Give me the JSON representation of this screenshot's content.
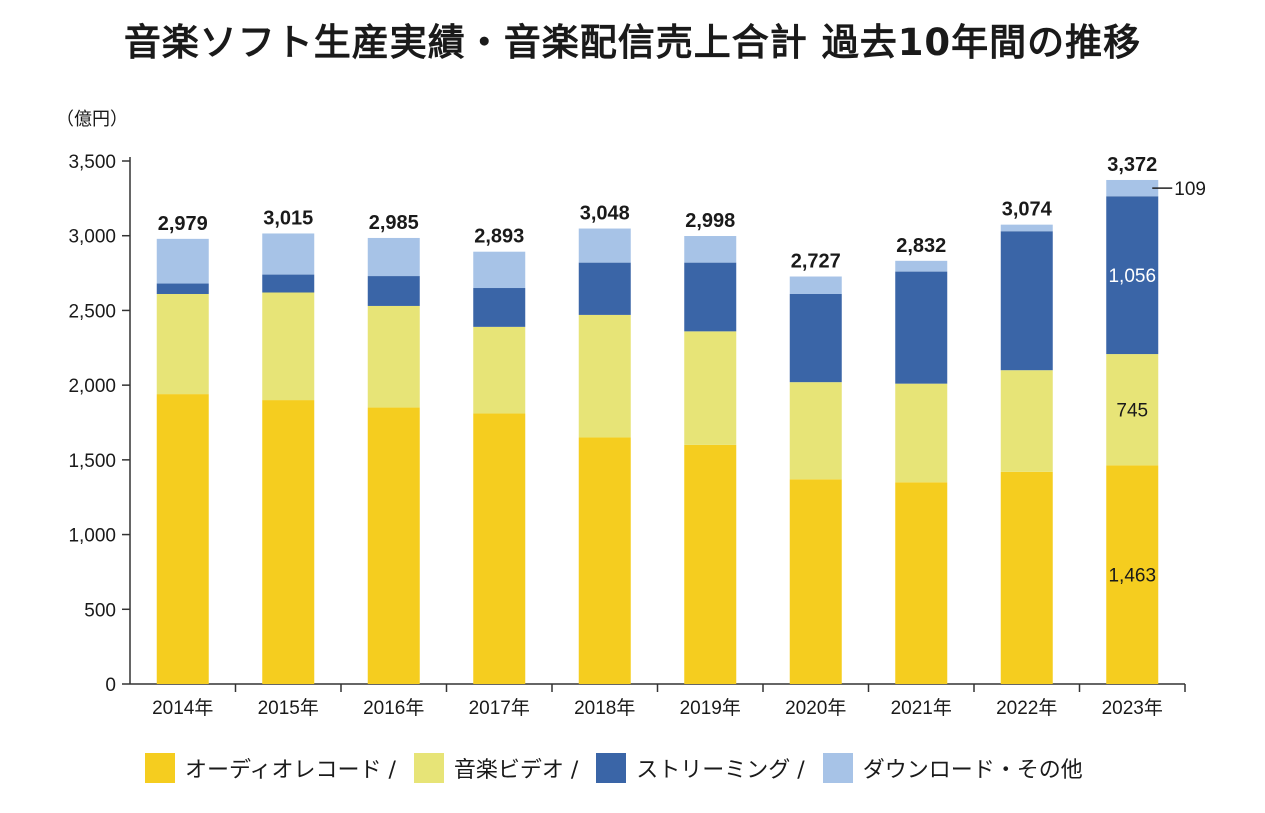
{
  "chart_data": {
    "type": "bar",
    "stacked": true,
    "title": "音楽ソフト生産実績・音楽配信売上合計 過去10年間の推移",
    "ylabel": "（億円）",
    "ylim": [
      0,
      3500
    ],
    "yticks": [
      0,
      500,
      1000,
      1500,
      2000,
      2500,
      3000,
      3500
    ],
    "ytick_labels": [
      "0",
      "500",
      "1,000",
      "1,500",
      "2,000",
      "2,500",
      "3,000",
      "3,500"
    ],
    "categories": [
      "2014年",
      "2015年",
      "2016年",
      "2017年",
      "2018年",
      "2019年",
      "2020年",
      "2021年",
      "2022年",
      "2023年"
    ],
    "series": [
      {
        "name": "オーディオレコード /",
        "color": "#F5CD1F",
        "values": [
          1940,
          1900,
          1850,
          1810,
          1650,
          1600,
          1370,
          1350,
          1420,
          1463
        ]
      },
      {
        "name": "音楽ビデオ /",
        "color": "#E7E477",
        "values": [
          670,
          720,
          680,
          580,
          820,
          760,
          650,
          660,
          680,
          745
        ]
      },
      {
        "name": "ストリーミング /",
        "color": "#3A65A7",
        "values": [
          70,
          120,
          200,
          260,
          350,
          460,
          590,
          750,
          930,
          1056
        ]
      },
      {
        "name": "ダウンロード・その他",
        "color": "#A7C3E7",
        "values": [
          299,
          275,
          255,
          243,
          228,
          178,
          117,
          72,
          44,
          109
        ]
      }
    ],
    "totals": [
      "2,979",
      "3,015",
      "2,985",
      "2,893",
      "3,048",
      "2,998",
      "2,727",
      "2,832",
      "3,074",
      "3,372"
    ],
    "annotations": [
      {
        "category": "2023年",
        "series": "オーディオレコード /",
        "label": "1,463"
      },
      {
        "category": "2023年",
        "series": "音楽ビデオ /",
        "label": "745"
      },
      {
        "category": "2023年",
        "series": "ストリーミング /",
        "label": "1,056"
      },
      {
        "category": "2023年",
        "series": "ダウンロード・その他",
        "label": "109"
      }
    ],
    "grid": false,
    "legend_position": "bottom"
  }
}
